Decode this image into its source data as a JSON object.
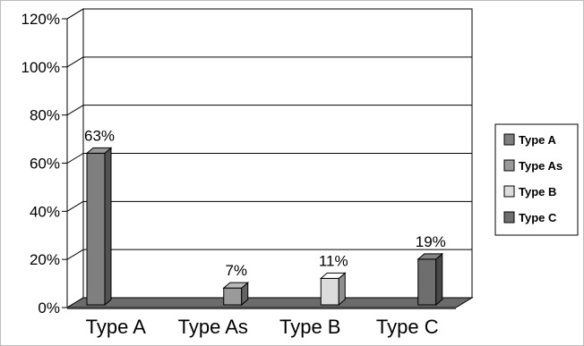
{
  "chart_data": {
    "type": "bar",
    "style": "3d",
    "categories": [
      "Type A",
      "Type As",
      "Type B",
      "Type C"
    ],
    "values": [
      63,
      7,
      11,
      19
    ],
    "data_labels": [
      "63%",
      "7%",
      "11%",
      "19%"
    ],
    "y_ticks": [
      "0%",
      "20%",
      "40%",
      "60%",
      "80%",
      "100%",
      "120%"
    ],
    "ylim": [
      0,
      120
    ],
    "grid": true,
    "legend_position": "right",
    "legend": [
      {
        "label": "Type A",
        "color": "#7f7f7f"
      },
      {
        "label": "Type As",
        "color": "#9a9a9a"
      },
      {
        "label": "Type B",
        "color": "#dcdcdc"
      },
      {
        "label": "Type C",
        "color": "#6e6e6e"
      }
    ],
    "bar_colors": [
      "#7f7f7f",
      "#9a9a9a",
      "#dcdcdc",
      "#6e6e6e"
    ],
    "floor_color": "#6b6b6b"
  }
}
